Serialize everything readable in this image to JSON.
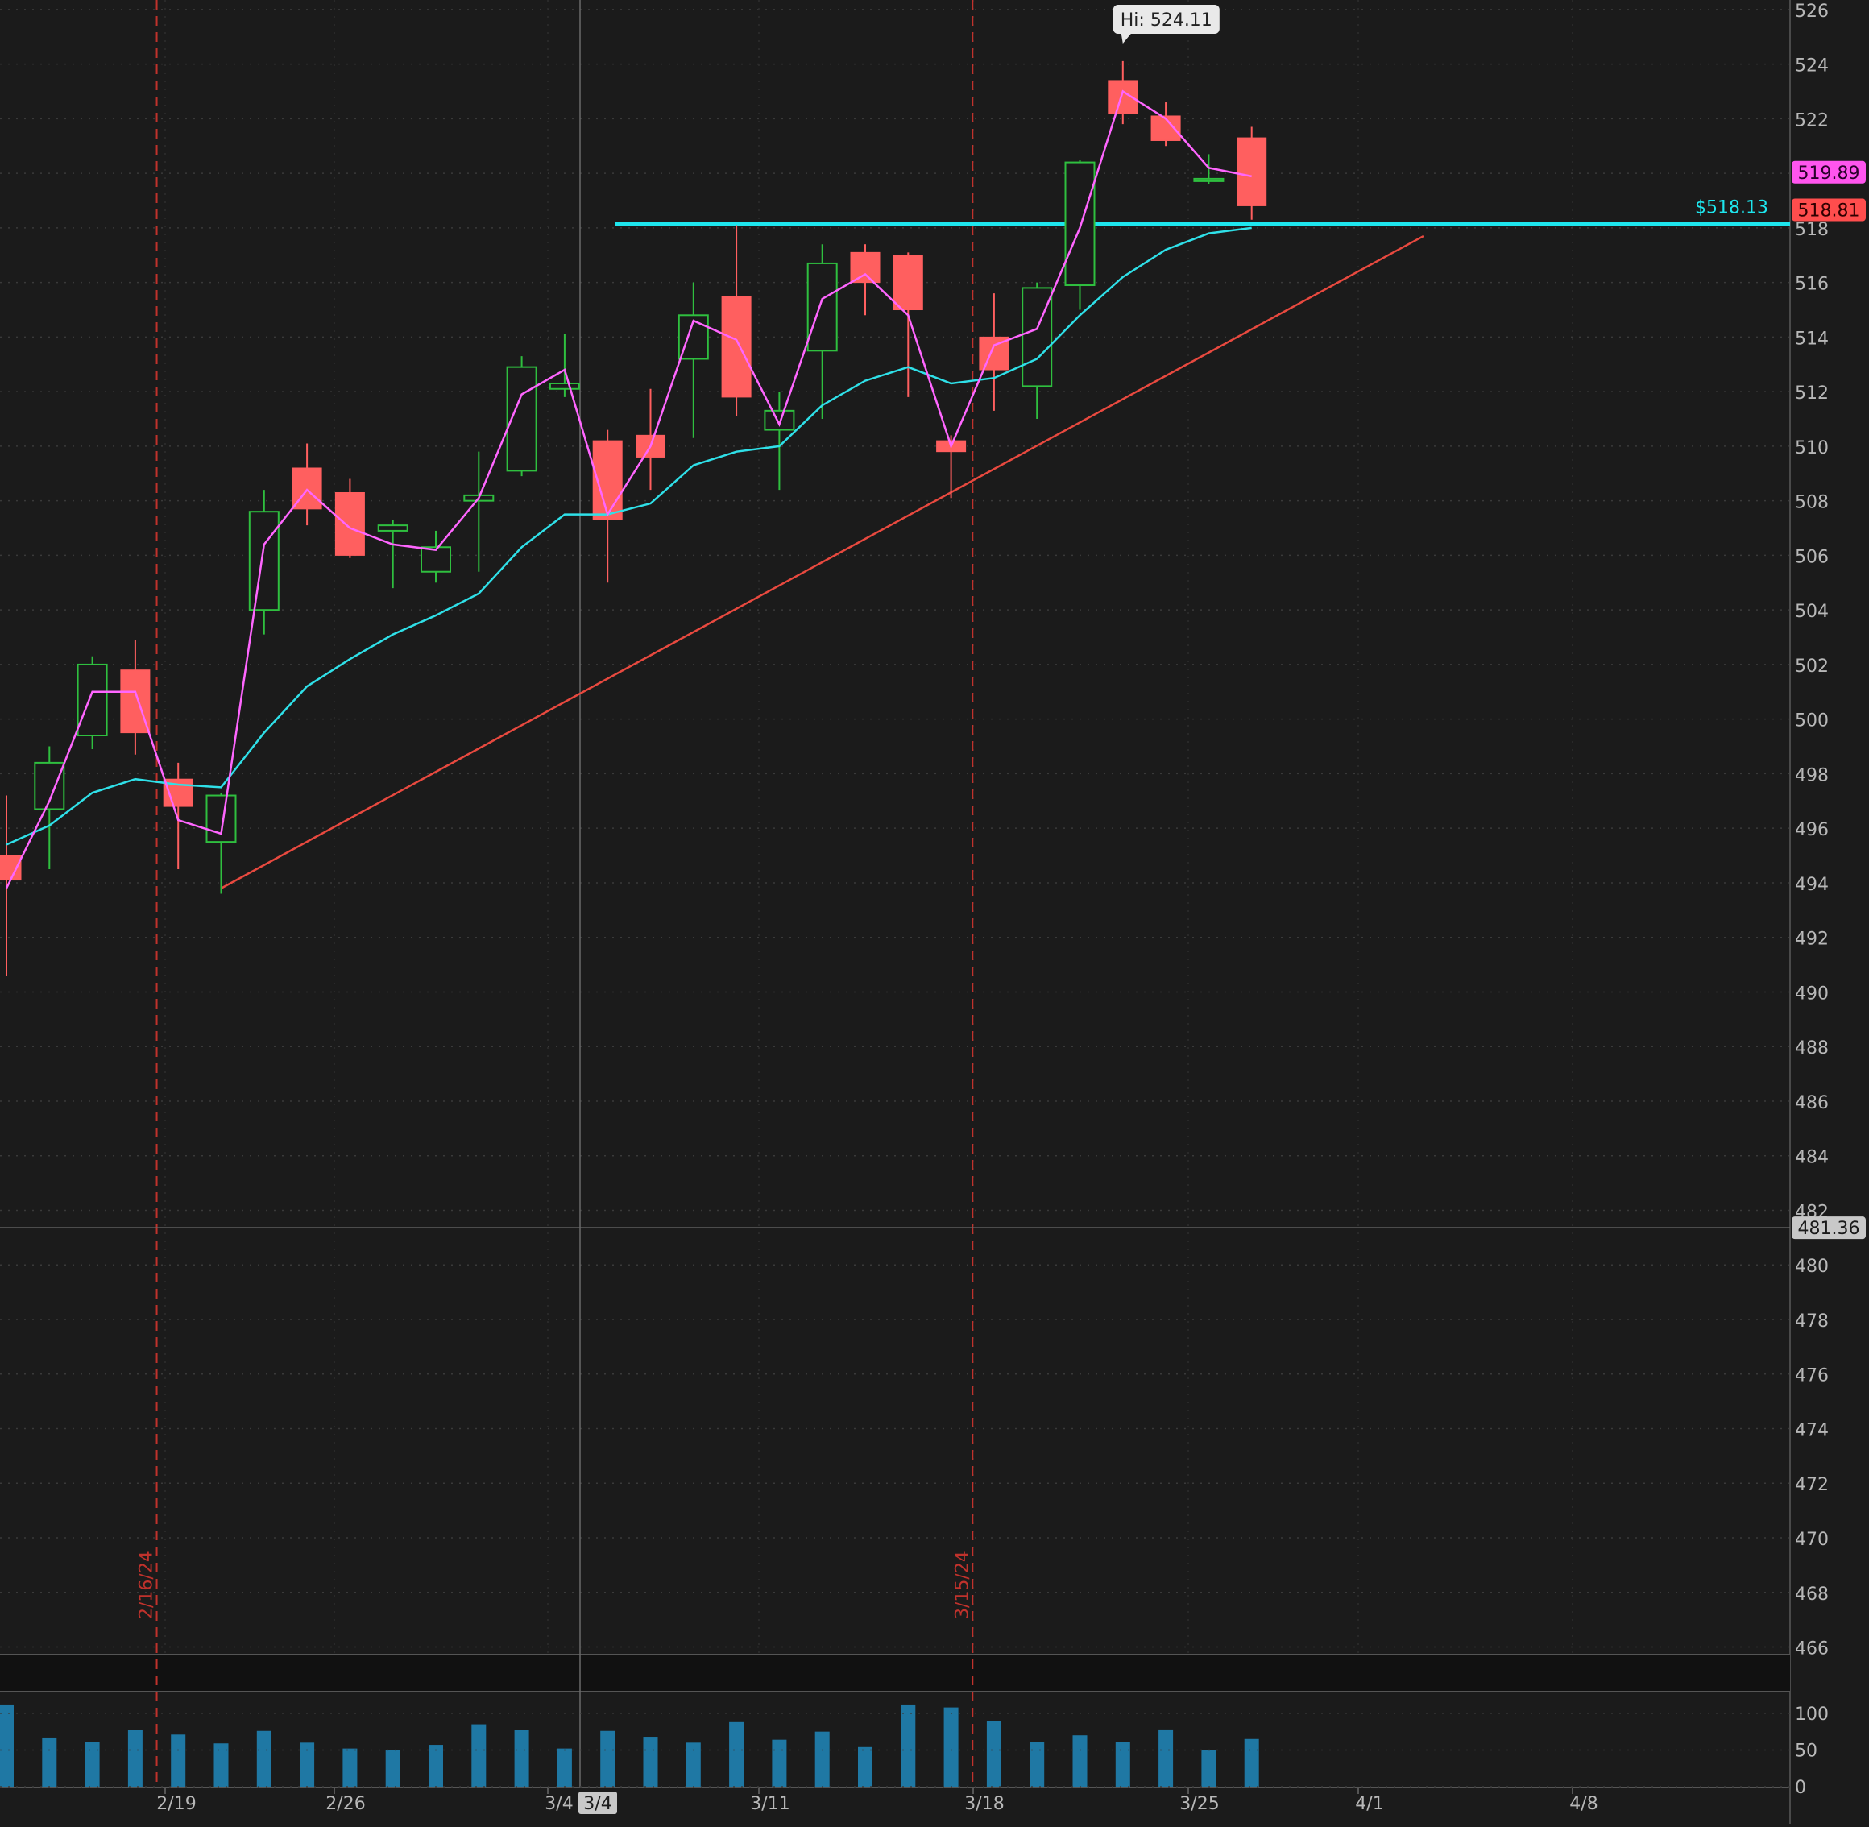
{
  "chart_data": {
    "type": "candlestick",
    "price_axis": {
      "ylim": [
        466,
        526
      ],
      "ticks": [
        466,
        468,
        470,
        472,
        474,
        476,
        478,
        480,
        482,
        484,
        486,
        488,
        490,
        492,
        494,
        496,
        498,
        500,
        502,
        504,
        506,
        508,
        510,
        512,
        514,
        516,
        518,
        520,
        522,
        524,
        526
      ],
      "grid": true
    },
    "volume_axis": {
      "ylim": [
        0,
        130
      ],
      "ticks": [
        0,
        50,
        100
      ]
    },
    "date_axis": {
      "ticks": [
        "2/19",
        "2/26",
        "3/4",
        "3/11",
        "3/18",
        "3/25",
        "4/1",
        "4/8"
      ]
    },
    "candles": [
      {
        "open": 495.0,
        "high": 497.2,
        "low": 490.6,
        "close": 494.1
      },
      {
        "open": 496.7,
        "high": 499.0,
        "low": 494.5,
        "close": 498.4
      },
      {
        "open": 499.4,
        "high": 502.3,
        "low": 498.9,
        "close": 502.0
      },
      {
        "open": 501.8,
        "high": 502.9,
        "low": 498.7,
        "close": 499.5
      },
      {
        "open": 497.8,
        "high": 498.4,
        "low": 494.5,
        "close": 496.8
      },
      {
        "open": 495.5,
        "high": 497.3,
        "low": 493.6,
        "close": 497.2
      },
      {
        "open": 504.0,
        "high": 508.4,
        "low": 503.1,
        "close": 507.6
      },
      {
        "open": 509.2,
        "high": 510.1,
        "low": 507.1,
        "close": 507.7
      },
      {
        "open": 508.3,
        "high": 508.8,
        "low": 505.9,
        "close": 506.0
      },
      {
        "open": 506.9,
        "high": 507.3,
        "low": 504.8,
        "close": 507.1
      },
      {
        "open": 505.4,
        "high": 506.9,
        "low": 505.0,
        "close": 506.3
      },
      {
        "open": 508.0,
        "high": 509.8,
        "low": 505.4,
        "close": 508.2
      },
      {
        "open": 509.1,
        "high": 513.3,
        "low": 508.9,
        "close": 512.9
      },
      {
        "open": 512.1,
        "high": 514.1,
        "low": 511.8,
        "close": 512.3
      },
      {
        "open": 510.2,
        "high": 510.6,
        "low": 505.0,
        "close": 507.3
      },
      {
        "open": 510.4,
        "high": 512.1,
        "low": 508.4,
        "close": 509.6
      },
      {
        "open": 513.2,
        "high": 516.0,
        "low": 510.3,
        "close": 514.8
      },
      {
        "open": 515.5,
        "high": 518.1,
        "low": 511.1,
        "close": 511.8
      },
      {
        "open": 510.6,
        "high": 512.0,
        "low": 508.4,
        "close": 511.3
      },
      {
        "open": 513.5,
        "high": 517.4,
        "low": 511.0,
        "close": 516.7
      },
      {
        "open": 517.1,
        "high": 517.4,
        "low": 514.8,
        "close": 516.0
      },
      {
        "open": 517.0,
        "high": 517.1,
        "low": 511.8,
        "close": 515.0
      },
      {
        "open": 510.2,
        "high": 510.4,
        "low": 508.1,
        "close": 509.8
      },
      {
        "open": 514.0,
        "high": 515.6,
        "low": 511.3,
        "close": 512.8
      },
      {
        "open": 512.2,
        "high": 516.0,
        "low": 511.0,
        "close": 515.8
      },
      {
        "open": 515.9,
        "high": 520.5,
        "low": 515.0,
        "close": 520.4
      },
      {
        "open": 523.4,
        "high": 524.11,
        "low": 521.8,
        "close": 522.2
      },
      {
        "open": 522.1,
        "high": 522.6,
        "low": 521.0,
        "close": 521.2
      },
      {
        "open": 519.8,
        "high": 520.7,
        "low": 519.6,
        "close": 519.8
      },
      {
        "open": 521.3,
        "high": 521.7,
        "low": 518.3,
        "close": 518.81
      }
    ],
    "volume": [
      112,
      67,
      61,
      77,
      71,
      59,
      76,
      60,
      52,
      50,
      57,
      85,
      77,
      52,
      76,
      68,
      60,
      88,
      64,
      75,
      54,
      112,
      108,
      89,
      61,
      70,
      61,
      78,
      50,
      65
    ],
    "fast_ma": [
      493.8,
      497.0,
      501.0,
      501.0,
      496.3,
      495.8,
      506.4,
      508.4,
      507.0,
      506.4,
      506.2,
      508.1,
      511.9,
      512.8,
      507.5,
      510.0,
      514.6,
      513.9,
      510.8,
      515.4,
      516.3,
      514.8,
      510.0,
      513.7,
      514.3,
      518.0,
      523.0,
      522.0,
      520.2,
      519.89
    ],
    "slow_ma": [
      495.4,
      496.1,
      497.3,
      497.8,
      497.6,
      497.5,
      499.5,
      501.2,
      502.2,
      503.1,
      503.8,
      504.6,
      506.3,
      507.5,
      507.5,
      507.9,
      509.3,
      509.8,
      510.0,
      511.5,
      512.4,
      512.9,
      512.3,
      512.5,
      513.2,
      514.8,
      516.2,
      517.2,
      517.8,
      518.0
    ],
    "levels": {
      "resistance": 518.13,
      "resistance_label": "$518.13",
      "crosshair_price": 481.36,
      "crosshair_label": "481.36"
    },
    "trendline": {
      "start_bar": 5,
      "start_price": 493.8,
      "end_bar": 33,
      "end_price": 517.7
    },
    "event_markers": [
      {
        "label": "2/16/24",
        "after_bar": 3
      },
      {
        "label": "3/15/24",
        "after_bar": 22
      }
    ],
    "crosshair_date_label": "3/4",
    "high_label": "Hi: 524.11",
    "high_bar": 26,
    "price_labels": {
      "fast_ma_value": "519.89",
      "last_close": "518.81"
    },
    "colors": {
      "up": "#2fbf3f",
      "down": "#ff5f5f",
      "fast_ma": "#ff66ff",
      "slow_ma": "#2fe0e8",
      "resistance": "#1ee6ee",
      "trendline": "#e8493f",
      "event_line": "#c0322c",
      "volume": "#1f78a4",
      "axis_text": "#b8b8b8",
      "background": "#1b1b1b"
    }
  }
}
